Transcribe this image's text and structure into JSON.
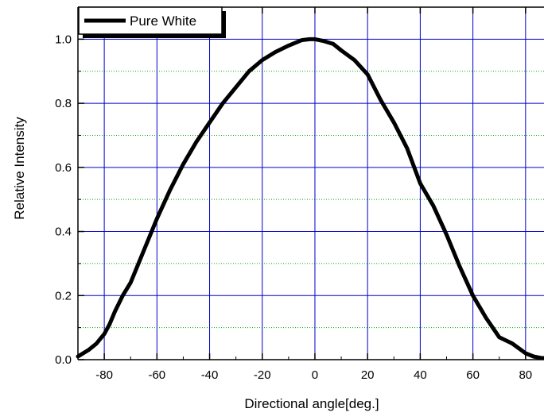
{
  "chart_data": {
    "type": "line",
    "title": "",
    "xlabel": "Directional angle[deg.]",
    "ylabel": "Relative Intensity",
    "xlim": [
      -90,
      87
    ],
    "ylim": [
      0,
      1.1
    ],
    "x_ticks": [
      -80,
      -60,
      -40,
      -20,
      0,
      20,
      40,
      60,
      80
    ],
    "x_tick_labels": [
      "-80",
      "-60",
      "-40",
      "-20",
      "0",
      "20",
      "40",
      "60",
      "80"
    ],
    "y_ticks": [
      0.0,
      0.2,
      0.4,
      0.6,
      0.8,
      1.0
    ],
    "y_tick_labels": [
      "0.0",
      "0.2",
      "0.4",
      "0.6",
      "0.8",
      "1.0"
    ],
    "y_minor_ticks": [
      0.1,
      0.3,
      0.5,
      0.7,
      0.9
    ],
    "grid": true,
    "major_grid_color": "#0000cc",
    "minor_grid_color": "#00aa00",
    "legend": {
      "position": "top-left",
      "entries": [
        "Pure White"
      ]
    },
    "series": [
      {
        "name": "Pure White",
        "color": "#000000",
        "x": [
          -90,
          -86,
          -83,
          -80,
          -78,
          -76,
          -73,
          -70,
          -67,
          -63,
          -60,
          -55,
          -50,
          -45,
          -40,
          -35,
          -30,
          -25,
          -20,
          -15,
          -10,
          -5,
          -2,
          0,
          3,
          7,
          10,
          15,
          20,
          25,
          30,
          35,
          40,
          45,
          50,
          55,
          60,
          65,
          70,
          75,
          80,
          83,
          86,
          87
        ],
        "y": [
          0.01,
          0.03,
          0.05,
          0.08,
          0.11,
          0.15,
          0.2,
          0.24,
          0.3,
          0.38,
          0.44,
          0.53,
          0.61,
          0.68,
          0.74,
          0.8,
          0.85,
          0.9,
          0.935,
          0.96,
          0.98,
          0.997,
          1.0,
          1.0,
          0.995,
          0.985,
          0.965,
          0.935,
          0.89,
          0.81,
          0.74,
          0.66,
          0.55,
          0.48,
          0.39,
          0.29,
          0.2,
          0.13,
          0.07,
          0.05,
          0.02,
          0.01,
          0.005,
          0.005
        ]
      }
    ]
  }
}
